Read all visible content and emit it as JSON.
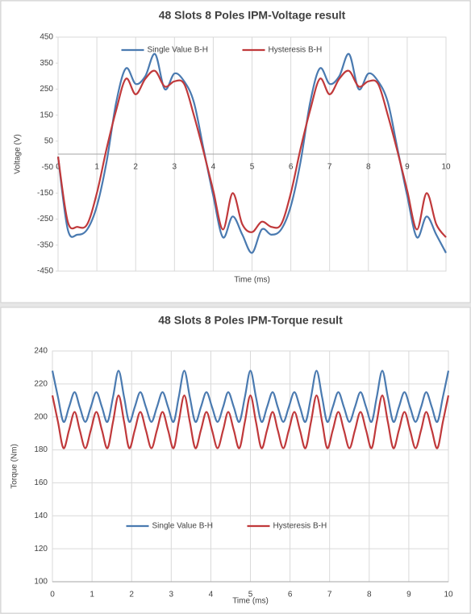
{
  "chart_data": [
    {
      "type": "line",
      "title": "48 Slots 8 Poles IPM-Voltage result",
      "xlabel": "Time (ms)",
      "ylabel": "Voltage (V)",
      "x": [
        0,
        0.25,
        0.5,
        0.75,
        1,
        1.25,
        1.5,
        1.75,
        2,
        2.25,
        2.5,
        2.75,
        3,
        3.25,
        3.5,
        3.75,
        4,
        4.25,
        4.5,
        4.75,
        5,
        5.25,
        5.5,
        5.75,
        6,
        6.25,
        6.5,
        6.75,
        7,
        7.25,
        7.5,
        7.75,
        8,
        8.25,
        8.5,
        8.75,
        9,
        9.25,
        9.5,
        9.75,
        10
      ],
      "series": [
        {
          "name": "Single Value B-H",
          "color": "#4a7ab0",
          "values": [
            -10,
            -290,
            -310,
            -290,
            -200,
            -30,
            200,
            330,
            270,
            300,
            385,
            250,
            310,
            280,
            200,
            20,
            -160,
            -320,
            -240,
            -310,
            -380,
            -290,
            -310,
            -290,
            -200,
            -30,
            200,
            330,
            270,
            300,
            385,
            250,
            310,
            280,
            200,
            20,
            -160,
            -320,
            -240,
            -310,
            -380
          ]
        },
        {
          "name": "Hysteresis B-H",
          "color": "#c0393b",
          "values": [
            -10,
            -260,
            -280,
            -270,
            -150,
            20,
            170,
            290,
            230,
            290,
            320,
            260,
            280,
            270,
            150,
            10,
            -140,
            -290,
            -150,
            -270,
            -300,
            -260,
            -280,
            -270,
            -150,
            20,
            170,
            290,
            230,
            290,
            320,
            260,
            280,
            270,
            150,
            10,
            -140,
            -290,
            -150,
            -270,
            -320
          ]
        }
      ],
      "xlim": [
        0,
        10
      ],
      "xticks": [
        0,
        1,
        2,
        3,
        4,
        5,
        6,
        7,
        8,
        9,
        10
      ],
      "ylim": [
        -450,
        450
      ],
      "yticks": [
        -450,
        -350,
        -250,
        -150,
        -50,
        50,
        150,
        250,
        350,
        450
      ],
      "xgrid": true,
      "ygrid": false,
      "legend": "top"
    },
    {
      "type": "line",
      "title": "48 Slots 8 Poles IPM-Torque result",
      "xlabel": "Time (ms)",
      "ylabel": "Torque (Nm)",
      "x": [
        0,
        0.14,
        0.28,
        0.42,
        0.56,
        0.69,
        0.83,
        0.97,
        1.11,
        1.25,
        1.39,
        1.53,
        1.67,
        1.81,
        1.94,
        2.08,
        2.22,
        2.36,
        2.5,
        2.64,
        2.78,
        2.92,
        3.06,
        3.19,
        3.33,
        3.47,
        3.61,
        3.75,
        3.89,
        4.03,
        4.17,
        4.31,
        4.44,
        4.58,
        4.72,
        4.86,
        5,
        5.14,
        5.28,
        5.42,
        5.56,
        5.69,
        5.83,
        5.97,
        6.11,
        6.25,
        6.39,
        6.53,
        6.67,
        6.81,
        6.94,
        7.08,
        7.22,
        7.36,
        7.5,
        7.64,
        7.78,
        7.92,
        8.06,
        8.19,
        8.33,
        8.47,
        8.61,
        8.75,
        8.89,
        9.03,
        9.17,
        9.31,
        9.44,
        9.58,
        9.72,
        9.86,
        10
      ],
      "series": [
        {
          "name": "Single Value B-H",
          "color": "#4a7ab0",
          "values": [
            228,
            212,
            197,
            206,
            215,
            206,
            197,
            206,
            215,
            206,
            197,
            212,
            228,
            212,
            197,
            206,
            215,
            206,
            197,
            206,
            215,
            206,
            197,
            212,
            228,
            212,
            197,
            206,
            215,
            206,
            197,
            206,
            215,
            206,
            197,
            212,
            228,
            212,
            197,
            206,
            215,
            206,
            197,
            206,
            215,
            206,
            197,
            212,
            228,
            212,
            197,
            206,
            215,
            206,
            197,
            206,
            215,
            206,
            197,
            212,
            228,
            212,
            197,
            206,
            215,
            206,
            197,
            206,
            215,
            206,
            197,
            212,
            228
          ]
        },
        {
          "name": "Hysteresis B-H",
          "color": "#c0393b",
          "values": [
            213,
            197,
            181,
            192,
            203,
            192,
            181,
            192,
            203,
            192,
            181,
            197,
            213,
            197,
            181,
            192,
            203,
            192,
            181,
            192,
            203,
            192,
            181,
            197,
            213,
            197,
            181,
            192,
            203,
            192,
            181,
            192,
            203,
            192,
            181,
            197,
            213,
            197,
            181,
            192,
            203,
            192,
            181,
            192,
            203,
            192,
            181,
            197,
            213,
            197,
            181,
            192,
            203,
            192,
            181,
            192,
            203,
            192,
            181,
            197,
            213,
            197,
            181,
            192,
            203,
            192,
            181,
            192,
            203,
            192,
            181,
            197,
            213
          ]
        }
      ],
      "xlim": [
        0,
        10
      ],
      "xticks": [
        0,
        1,
        2,
        3,
        4,
        5,
        6,
        7,
        8,
        9,
        10
      ],
      "ylim": [
        100,
        240
      ],
      "yticks": [
        100,
        120,
        140,
        160,
        180,
        200,
        220,
        240
      ],
      "xgrid": true,
      "ygrid": true,
      "legend": "center"
    }
  ]
}
